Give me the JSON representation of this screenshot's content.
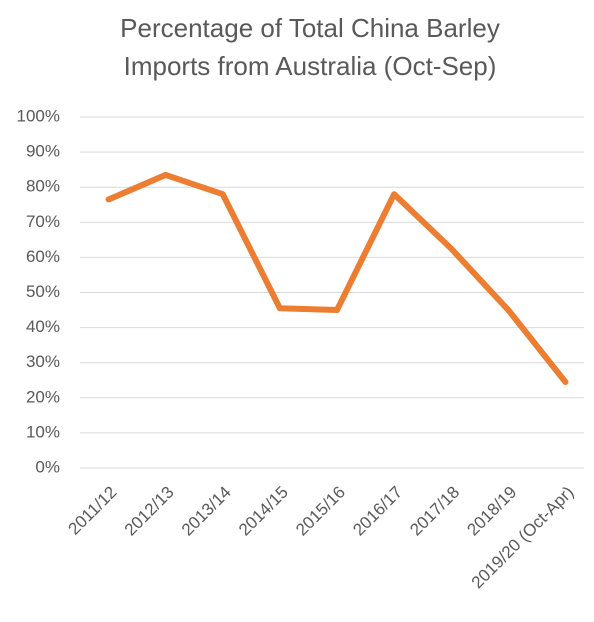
{
  "chart_data": {
    "type": "line",
    "title": [
      "Percentage of Total China Barley",
      "Imports from Australia (Oct-Sep)"
    ],
    "categories": [
      "2011/12",
      "2012/13",
      "2013/14",
      "2014/15",
      "2015/16",
      "2016/17",
      "2017/18",
      "2018/19",
      "2019/20 (Oct-Apr)"
    ],
    "values": [
      76.5,
      83.5,
      78,
      45.5,
      45,
      78,
      62.5,
      45,
      24.5
    ],
    "color": "#ed7d31",
    "ylim": [
      0,
      100
    ],
    "yticks": [
      {
        "value": 0,
        "label": "0%"
      },
      {
        "value": 10,
        "label": "10%"
      },
      {
        "value": 20,
        "label": "20%"
      },
      {
        "value": 30,
        "label": "30%"
      },
      {
        "value": 40,
        "label": "40%"
      },
      {
        "value": 50,
        "label": "50%"
      },
      {
        "value": 60,
        "label": "60%"
      },
      {
        "value": 70,
        "label": "70%"
      },
      {
        "value": 80,
        "label": "80%"
      },
      {
        "value": 90,
        "label": "90%"
      },
      {
        "value": 100,
        "label": "100%"
      }
    ],
    "grid": true
  }
}
